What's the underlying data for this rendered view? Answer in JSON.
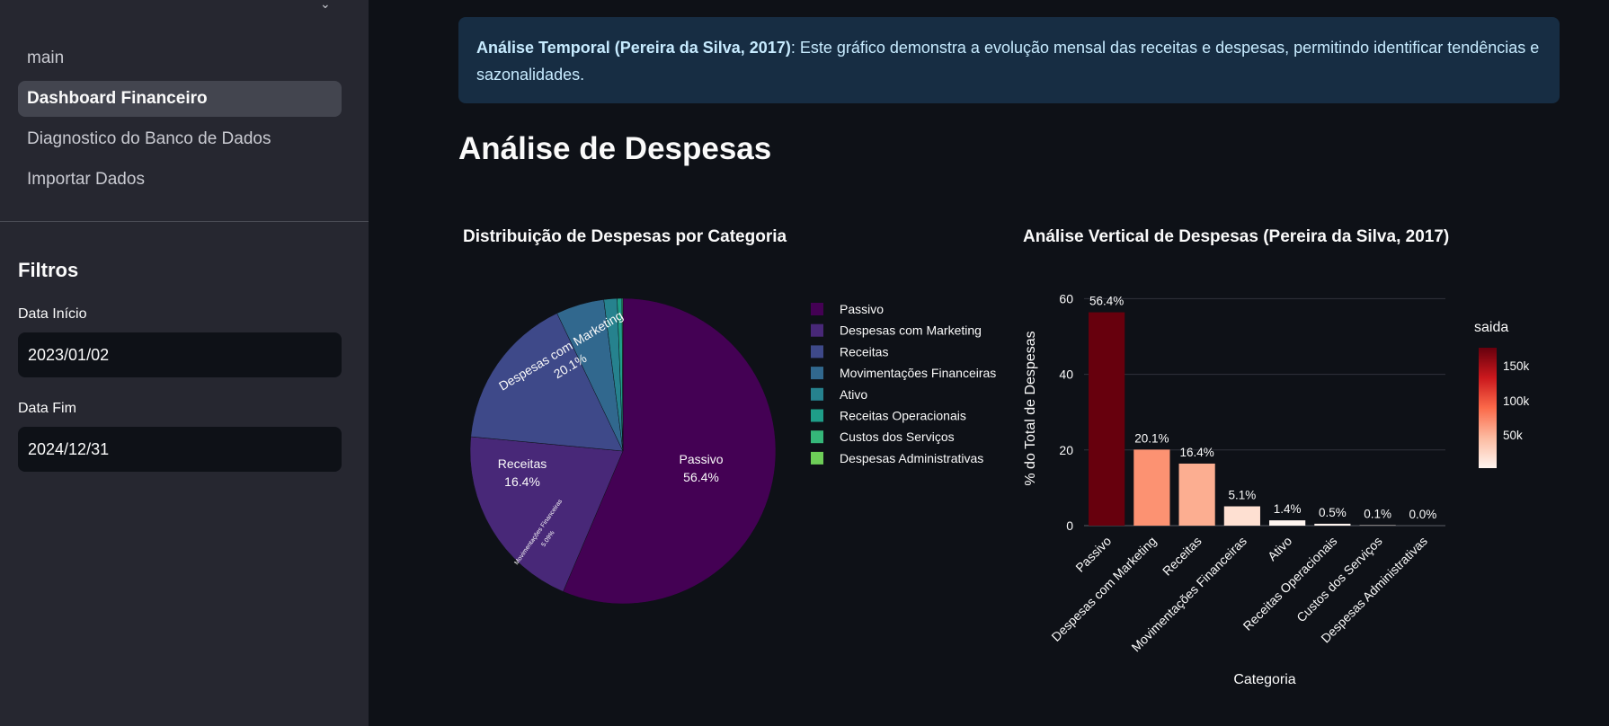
{
  "sidebar": {
    "nav": [
      {
        "label": "main",
        "active": false
      },
      {
        "label": "Dashboard Financeiro",
        "active": true
      },
      {
        "label": "Diagnostico do Banco de Dados",
        "active": false
      },
      {
        "label": "Importar Dados",
        "active": false
      }
    ],
    "filters_title": "Filtros",
    "start_label": "Data Início",
    "start_value": "2023/01/02",
    "end_label": "Data Fim",
    "end_value": "2024/12/31"
  },
  "main": {
    "info_bold": "Análise Temporal (Pereira da Silva, 2017)",
    "info_text": ": Este gráfico demonstra a evolução mensal das receitas e despesas, permitindo identificar tendências e sazonalidades.",
    "section_title": "Análise de Despesas"
  },
  "chart_data": [
    {
      "type": "pie",
      "title": "Distribuição de Despesas por Categoria",
      "labels": [
        "Passivo",
        "Despesas com Marketing",
        "Receitas",
        "Movimentações Financeiras",
        "Ativo",
        "Receitas Operacionais",
        "Custos dos Serviços",
        "Despesas Administrativas"
      ],
      "values": [
        56.4,
        20.1,
        16.4,
        5.1,
        1.4,
        0.5,
        0.1,
        0.0
      ],
      "slice_text": [
        "56.4%",
        "20.1%",
        "16.4%",
        "5.09%",
        "",
        "",
        "",
        ""
      ],
      "colors": [
        "#440154",
        "#482878",
        "#3e4989",
        "#31688e",
        "#26828e",
        "#1f9e89",
        "#35b779",
        "#6ece58"
      ],
      "legend": "right"
    },
    {
      "type": "bar",
      "title": "Análise Vertical de Despesas (Pereira da Silva, 2017)",
      "categories": [
        "Passivo",
        "Despesas com Marketing",
        "Receitas",
        "Movimentações Financeiras",
        "Ativo",
        "Receitas Operacionais",
        "Custos dos Serviços",
        "Despesas Administrativas"
      ],
      "values": [
        56.4,
        20.1,
        16.4,
        5.1,
        1.4,
        0.5,
        0.1,
        0.0
      ],
      "value_labels": [
        "56.4%",
        "20.1%",
        "16.4%",
        "5.1%",
        "1.4%",
        "0.5%",
        "0.1%",
        "0.0%"
      ],
      "bar_colors": [
        "#67000d",
        "#fc9272",
        "#fcae91",
        "#fee0d2",
        "#fff5f0",
        "#fff5f0",
        "#fff5f0",
        "#fff5f0"
      ],
      "xlabel": "Categoria",
      "ylabel": "% do Total de Despesas",
      "ylim": [
        0,
        62
      ],
      "yticks": [
        0,
        20,
        40,
        60
      ],
      "grid": true,
      "colorbar": {
        "title": "saida",
        "ticks": [
          "150k",
          "100k",
          "50k"
        ]
      }
    }
  ]
}
